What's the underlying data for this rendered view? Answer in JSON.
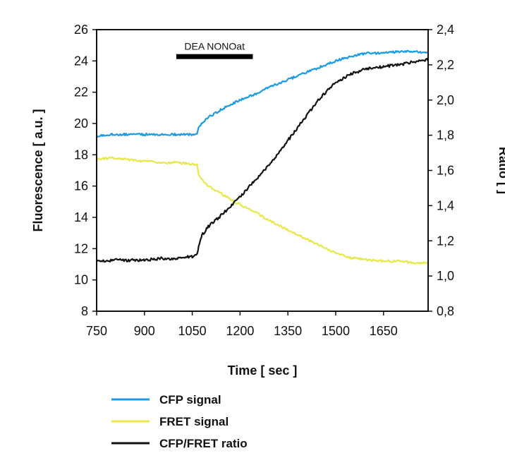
{
  "chart_data": {
    "type": "line",
    "xlabel": "Time [ sec ]",
    "ylabel_left": "Fluorescence [ a.u. ]",
    "ylabel_right": "Ratio [  ]",
    "xlim": [
      750,
      1790
    ],
    "ylim_left": [
      8,
      26
    ],
    "ylim_right": [
      0.8,
      2.4
    ],
    "x_ticks": [
      "750",
      "900",
      "1050",
      "1200",
      "1350",
      "1500",
      "1650"
    ],
    "y_left_ticks": [
      "8",
      "10",
      "12",
      "14",
      "16",
      "18",
      "20",
      "22",
      "24",
      "26"
    ],
    "y_right_ticks": [
      "0,8",
      "1,0",
      "1,2",
      "1,4",
      "1,6",
      "1,8",
      "2,0",
      "2,2",
      "2,4"
    ],
    "grid": false,
    "legend_position": "bottom",
    "annotation": {
      "label": "DEA NONOat",
      "x_start": 1000,
      "x_end": 1240,
      "y_left": 24.3
    },
    "series": [
      {
        "name": "CFP signal",
        "axis": "left",
        "color": "#1a9be6",
        "x": [
          750,
          800,
          850,
          900,
          950,
          1000,
          1050,
          1065,
          1070,
          1080,
          1100,
          1150,
          1200,
          1250,
          1300,
          1350,
          1400,
          1450,
          1500,
          1550,
          1600,
          1650,
          1700,
          1750,
          1790
        ],
        "y": [
          19.2,
          19.3,
          19.3,
          19.3,
          19.3,
          19.3,
          19.3,
          19.4,
          19.7,
          20.0,
          20.4,
          21.0,
          21.5,
          21.9,
          22.4,
          22.8,
          23.2,
          23.6,
          24.0,
          24.3,
          24.5,
          24.5,
          24.6,
          24.6,
          24.5
        ]
      },
      {
        "name": "FRET signal",
        "axis": "left",
        "color": "#e8e84a",
        "x": [
          750,
          800,
          850,
          900,
          950,
          1000,
          1050,
          1065,
          1070,
          1080,
          1100,
          1150,
          1200,
          1250,
          1300,
          1350,
          1400,
          1450,
          1500,
          1550,
          1600,
          1650,
          1700,
          1750,
          1790
        ],
        "y": [
          17.7,
          17.8,
          17.7,
          17.6,
          17.5,
          17.5,
          17.4,
          17.4,
          16.7,
          16.4,
          16.0,
          15.4,
          14.8,
          14.3,
          13.7,
          13.2,
          12.7,
          12.2,
          11.7,
          11.4,
          11.3,
          11.2,
          11.2,
          11.1,
          11.1
        ]
      },
      {
        "name": "CFP/FRET ratio",
        "axis": "right",
        "color": "#111111",
        "x": [
          750,
          800,
          850,
          900,
          950,
          1000,
          1050,
          1065,
          1070,
          1080,
          1100,
          1150,
          1200,
          1250,
          1300,
          1350,
          1400,
          1450,
          1500,
          1550,
          1600,
          1650,
          1700,
          1750,
          1790
        ],
        "y": [
          1.08,
          1.09,
          1.09,
          1.09,
          1.1,
          1.1,
          1.11,
          1.12,
          1.17,
          1.23,
          1.28,
          1.36,
          1.45,
          1.55,
          1.65,
          1.77,
          1.89,
          2.01,
          2.1,
          2.15,
          2.18,
          2.19,
          2.2,
          2.22,
          2.23
        ]
      }
    ]
  }
}
